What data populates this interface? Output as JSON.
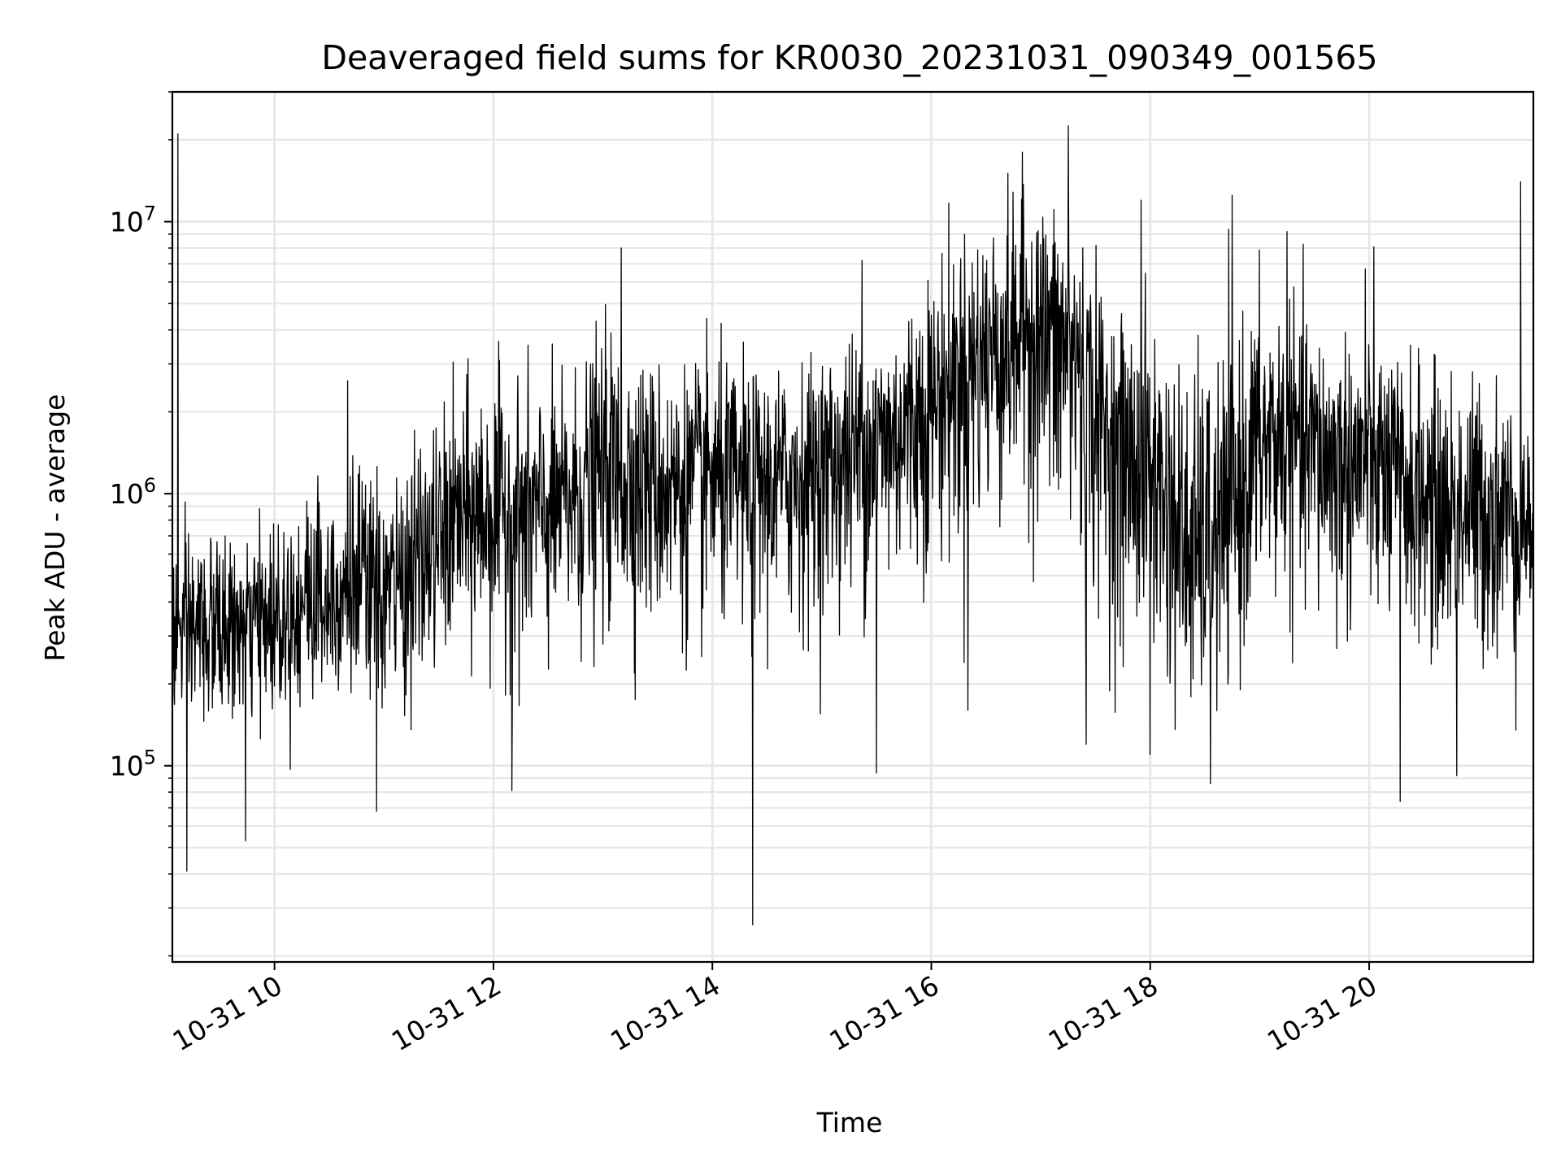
{
  "chart_data": {
    "type": "line",
    "title": "Deaveraged field sums for KR0030_20231031_090349_001565",
    "xlabel": "Time",
    "ylabel": "Peak ADU - average",
    "x_axis_type": "datetime",
    "xlim": [
      "2023-10-31 09:04",
      "2023-10-31 21:30"
    ],
    "yscale": "log",
    "ylim": [
      19000,
      30000000
    ],
    "grid": true,
    "legend": "none",
    "line_color": "#000000",
    "grid_color": "#e6e6e6",
    "x_ticks": [
      {
        "value": "2023-10-31 10:00",
        "label": "10-31 10"
      },
      {
        "value": "2023-10-31 12:00",
        "label": "10-31 12"
      },
      {
        "value": "2023-10-31 14:00",
        "label": "10-31 14"
      },
      {
        "value": "2023-10-31 16:00",
        "label": "10-31 16"
      },
      {
        "value": "2023-10-31 18:00",
        "label": "10-31 18"
      },
      {
        "value": "2023-10-31 20:00",
        "label": "10-31 20"
      }
    ],
    "y_ticks": [
      {
        "value": 100000,
        "base": "10",
        "exp": "5"
      },
      {
        "value": 1000000,
        "base": "10",
        "exp": "6"
      },
      {
        "value": 10000000,
        "base": "10",
        "exp": "7"
      }
    ],
    "series": [
      {
        "x": [
          "2023-10-31 09:04",
          "2023-10-31 09:20",
          "2023-10-31 09:40",
          "2023-10-31 10:00",
          "2023-10-31 10:20",
          "2023-10-31 10:40",
          "2023-10-31 11:00",
          "2023-10-31 11:20",
          "2023-10-31 11:40",
          "2023-10-31 12:00",
          "2023-10-31 12:20",
          "2023-10-31 12:40",
          "2023-10-31 13:00",
          "2023-10-31 13:20",
          "2023-10-31 13:40",
          "2023-10-31 14:00",
          "2023-10-31 14:20",
          "2023-10-31 14:40",
          "2023-10-31 15:00",
          "2023-10-31 15:20",
          "2023-10-31 15:40",
          "2023-10-31 16:00",
          "2023-10-31 16:20",
          "2023-10-31 16:40",
          "2023-10-31 17:00",
          "2023-10-31 17:20",
          "2023-10-31 17:40",
          "2023-10-31 18:00",
          "2023-10-31 18:20",
          "2023-10-31 18:40",
          "2023-10-31 19:00",
          "2023-10-31 19:20",
          "2023-10-31 19:40",
          "2023-10-31 20:00",
          "2023-10-31 20:20",
          "2023-10-31 20:40",
          "2023-10-31 21:00",
          "2023-10-31 21:20",
          "2023-10-31 21:30"
        ],
        "median": [
          300000,
          330000,
          320000,
          360000,
          400000,
          450000,
          420000,
          550000,
          800000,
          900000,
          850000,
          950000,
          1300000,
          1200000,
          1100000,
          1200000,
          1100000,
          1200000,
          1300000,
          1500000,
          1700000,
          2200000,
          3000000,
          4000000,
          4500000,
          3500000,
          1500000,
          1300000,
          600000,
          700000,
          1600000,
          1600000,
          1400000,
          1300000,
          1100000,
          900000,
          900000,
          850000,
          800000
        ],
        "high": [
          750000,
          900000,
          700000,
          1000000,
          1500000,
          2000000,
          1300000,
          2000000,
          3000000,
          3500000,
          3000000,
          3000000,
          5000000,
          4000000,
          3500000,
          4000000,
          3500000,
          3500000,
          4000000,
          5000000,
          5500000,
          9000000,
          12000000,
          14000000,
          15000000,
          11000000,
          6000000,
          6000000,
          4000000,
          4500000,
          7000000,
          6000000,
          5000000,
          5000000,
          4000000,
          3500000,
          3500000,
          3000000,
          2000000
        ],
        "low": [
          120000,
          110000,
          140000,
          130000,
          150000,
          160000,
          130000,
          170000,
          220000,
          200000,
          180000,
          200000,
          250000,
          260000,
          250000,
          240000,
          250000,
          260000,
          280000,
          330000,
          400000,
          450000,
          500000,
          650000,
          600000,
          300000,
          250000,
          200000,
          120000,
          150000,
          300000,
          350000,
          250000,
          280000,
          250000,
          200000,
          200000,
          200000,
          250000
        ],
        "spikes": [
          {
            "x": "2023-10-31 09:07",
            "y": 21000000
          },
          {
            "x": "2023-10-31 09:12",
            "y": 41000
          },
          {
            "x": "2023-10-31 09:44",
            "y": 53000
          },
          {
            "x": "2023-10-31 10:40",
            "y": 2600000
          },
          {
            "x": "2023-10-31 10:56",
            "y": 68000
          },
          {
            "x": "2023-10-31 12:10",
            "y": 81000
          },
          {
            "x": "2023-10-31 13:10",
            "y": 8000000
          },
          {
            "x": "2023-10-31 14:22",
            "y": 26000
          },
          {
            "x": "2023-10-31 15:22",
            "y": 7200000
          },
          {
            "x": "2023-10-31 15:30",
            "y": 94000
          },
          {
            "x": "2023-10-31 16:20",
            "y": 160000
          },
          {
            "x": "2023-10-31 16:50",
            "y": 18000000
          },
          {
            "x": "2023-10-31 17:15",
            "y": 22500000
          },
          {
            "x": "2023-10-31 17:25",
            "y": 120000
          },
          {
            "x": "2023-10-31 17:55",
            "y": 12000000
          },
          {
            "x": "2023-10-31 18:00",
            "y": 110000
          },
          {
            "x": "2023-10-31 18:33",
            "y": 86000
          },
          {
            "x": "2023-10-31 18:45",
            "y": 12500000
          },
          {
            "x": "2023-10-31 19:15",
            "y": 9200000
          },
          {
            "x": "2023-10-31 19:58",
            "y": 6700000
          },
          {
            "x": "2023-10-31 20:17",
            "y": 74000
          },
          {
            "x": "2023-10-31 20:48",
            "y": 92000
          },
          {
            "x": "2023-10-31 21:23",
            "y": 14000000
          }
        ]
      }
    ]
  }
}
